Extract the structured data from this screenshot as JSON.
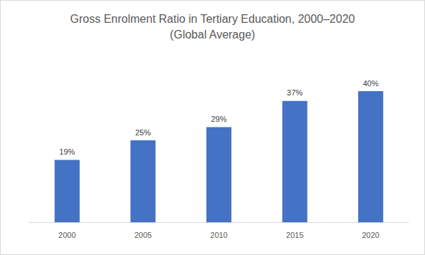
{
  "chart_data": {
    "type": "bar",
    "title": "Gross Enrolment Ratio in Tertiary Education, 2000–2020",
    "subtitle": "(Global Average)",
    "categories": [
      "2000",
      "2005",
      "2010",
      "2015",
      "2020"
    ],
    "values": [
      19,
      25,
      29,
      37,
      40
    ],
    "value_labels": [
      "19%",
      "25%",
      "29%",
      "37%",
      "40%"
    ],
    "color": "#4472c4",
    "ylim": [
      0,
      45
    ],
    "yticks": [
      0,
      5,
      10,
      15,
      20,
      25,
      30,
      35,
      40,
      45
    ],
    "grid": false,
    "data_labels": true,
    "tick_labels": "x"
  }
}
